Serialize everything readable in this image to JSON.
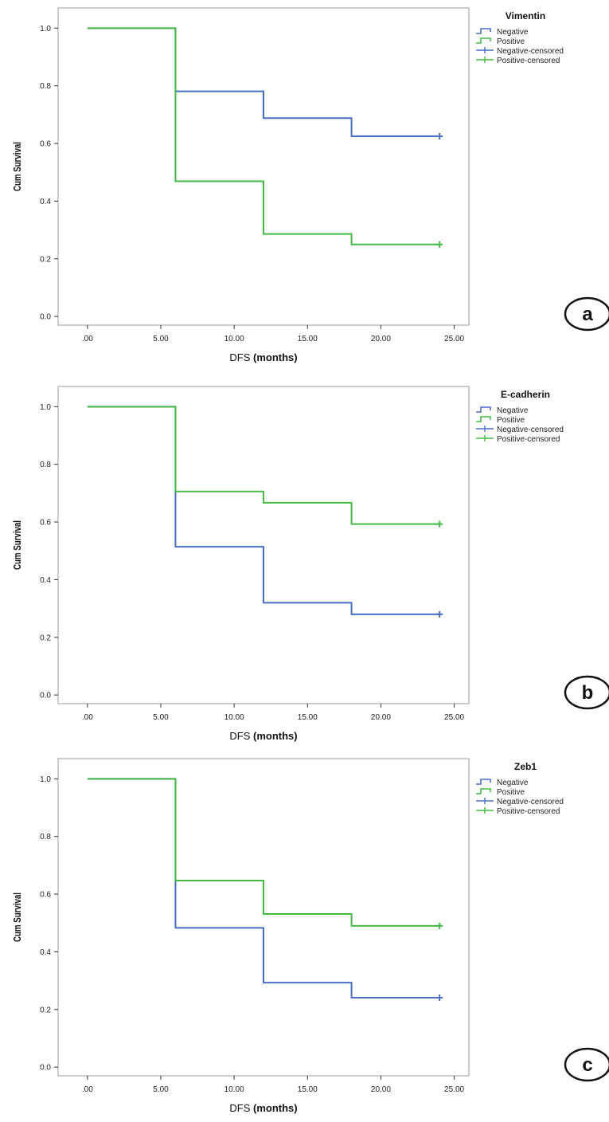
{
  "colors": {
    "negative": "#4a6fc6",
    "positive": "#44bb44",
    "axis": "#333333",
    "frame": "#9a9a9a"
  },
  "chart_data": [
    {
      "type": "line",
      "step": true,
      "legend_title": "Vimentin",
      "panel_label": "a",
      "xlabel": "DFS (months)",
      "ylabel": "Cum Survival",
      "xlim": [
        -2,
        26
      ],
      "ylim": [
        -0.03,
        1.07
      ],
      "xticks": [
        ".00",
        "5.00",
        "10.00",
        "15.00",
        "20.00",
        "25.00"
      ],
      "yticks": [
        "0.0",
        "0.2",
        "0.4",
        "0.6",
        "0.8",
        "1.0"
      ],
      "legend_position": "top-right",
      "legend": [
        "Negative",
        "Positive",
        "Negative-censored",
        "Positive-censored"
      ],
      "series": [
        {
          "name": "Negative",
          "x": [
            0,
            6,
            12,
            18,
            24
          ],
          "y": [
            1.0,
            0.781,
            0.688,
            0.625,
            0.625
          ],
          "censored": [
            [
              24,
              0.625
            ]
          ]
        },
        {
          "name": "Positive",
          "x": [
            0,
            6,
            12,
            18,
            24
          ],
          "y": [
            1.0,
            0.469,
            0.286,
            0.25,
            0.25
          ],
          "censored": [
            [
              24,
              0.25
            ]
          ]
        }
      ]
    },
    {
      "type": "line",
      "step": true,
      "legend_title": "E-cadherin",
      "panel_label": "b",
      "xlabel": "DFS (months)",
      "ylabel": "Cum Survival",
      "xlim": [
        -2,
        26
      ],
      "ylim": [
        -0.03,
        1.07
      ],
      "xticks": [
        ".00",
        "5.00",
        "10.00",
        "15.00",
        "20.00",
        "25.00"
      ],
      "yticks": [
        "0.0",
        "0.2",
        "0.4",
        "0.6",
        "0.8",
        "1.0"
      ],
      "legend_position": "top-right",
      "legend": [
        "Negative",
        "Positive",
        "Negative-censored",
        "Positive-censored"
      ],
      "series": [
        {
          "name": "Negative",
          "x": [
            0,
            6,
            12,
            18,
            24
          ],
          "y": [
            1.0,
            0.514,
            0.32,
            0.28,
            0.28
          ],
          "censored": [
            [
              24,
              0.28
            ]
          ]
        },
        {
          "name": "Positive",
          "x": [
            0,
            6,
            12,
            18,
            24
          ],
          "y": [
            1.0,
            0.706,
            0.667,
            0.593,
            0.593
          ],
          "censored": [
            [
              24,
              0.593
            ]
          ]
        }
      ]
    },
    {
      "type": "line",
      "step": true,
      "legend_title": "Zeb1",
      "panel_label": "c",
      "xlabel": "DFS (months)",
      "ylabel": "Cum Survival",
      "xlim": [
        -2,
        26
      ],
      "ylim": [
        -0.03,
        1.07
      ],
      "xticks": [
        ".00",
        "5.00",
        "10.00",
        "15.00",
        "20.00",
        "25.00"
      ],
      "yticks": [
        "0.0",
        "0.2",
        "0.4",
        "0.6",
        "0.8",
        "1.0"
      ],
      "legend_position": "top-right",
      "legend": [
        "Negative",
        "Positive",
        "Negative-censored",
        "Positive-censored"
      ],
      "series": [
        {
          "name": "Negative",
          "x": [
            0,
            6,
            12,
            18,
            24
          ],
          "y": [
            1.0,
            0.483,
            0.293,
            0.241,
            0.241
          ],
          "censored": [
            [
              24,
              0.241
            ]
          ]
        },
        {
          "name": "Positive",
          "x": [
            0,
            6,
            12,
            18,
            24
          ],
          "y": [
            1.0,
            0.647,
            0.531,
            0.49,
            0.49
          ],
          "censored": [
            [
              24,
              0.49
            ]
          ]
        }
      ]
    }
  ]
}
